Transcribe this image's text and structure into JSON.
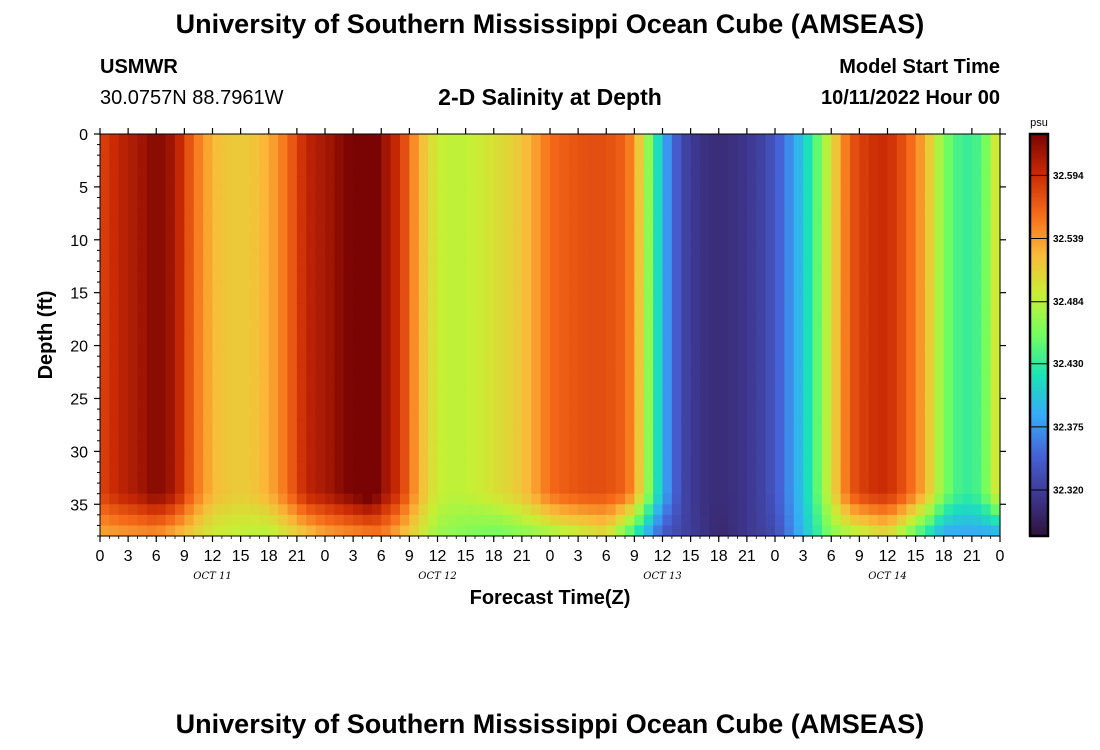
{
  "header": {
    "title": "University of Southern Mississippi Ocean Cube (AMSEAS)",
    "station": "USMWR",
    "coords": "30.0757N  88.7961W",
    "subtitle": "2-D Salinity at Depth",
    "model_start_label": "Model Start Time",
    "model_start_value": "10/11/2022 Hour 00"
  },
  "footer": {
    "title": "University of Southern Mississippi Ocean Cube (AMSEAS)"
  },
  "colors": {
    "scale": [
      "#30123b",
      "#3e378f",
      "#4662d7",
      "#35abf8",
      "#1ae4b6",
      "#72fe5e",
      "#c8ef34",
      "#faba39",
      "#f66b19",
      "#ca2a04",
      "#7a0403"
    ]
  },
  "chart_data": {
    "type": "heatmap",
    "title": "2-D Salinity at Depth",
    "xlabel": "Forecast Time(Z)",
    "ylabel": "Depth (ft)",
    "x_hours_range": [
      0,
      96
    ],
    "y_range": [
      0,
      38
    ],
    "y_ticks": [
      0,
      5,
      10,
      15,
      20,
      25,
      30,
      35
    ],
    "x_tick_labels": [
      "0",
      "3",
      "6",
      "9",
      "12",
      "15",
      "18",
      "21",
      "0",
      "3",
      "6",
      "9",
      "12",
      "15",
      "18",
      "21",
      "0",
      "3",
      "6",
      "9",
      "12",
      "15",
      "18",
      "21",
      "0",
      "3",
      "6",
      "9",
      "12",
      "15",
      "18",
      "21",
      "0"
    ],
    "day_labels": [
      {
        "text": "OCT 11",
        "hour": 12
      },
      {
        "text": "OCT 12",
        "hour": 36
      },
      {
        "text": "OCT 13",
        "hour": 60
      },
      {
        "text": "OCT 14",
        "hour": 84
      }
    ],
    "colorbar": {
      "unit": "psu",
      "range": [
        32.28,
        32.63
      ],
      "ticks": [
        32.594,
        32.539,
        32.484,
        32.43,
        32.375,
        32.32
      ],
      "tick_labels": [
        "32.594",
        "32.539",
        "32.484",
        "32.430",
        "32.375",
        "32.320"
      ]
    },
    "surface_salinity_series": {
      "hours": [
        0,
        2,
        4,
        6,
        8,
        10,
        12,
        14,
        16,
        18,
        20,
        22,
        24,
        26,
        28,
        29,
        30,
        32,
        34,
        36,
        38,
        40,
        42,
        44,
        46,
        48,
        50,
        52,
        54,
        56,
        57,
        58,
        59,
        60,
        62,
        64,
        66,
        68,
        70,
        72,
        74,
        76,
        78,
        80,
        82,
        84,
        86,
        88,
        90,
        92,
        94,
        96
      ],
      "values": [
        32.58,
        32.6,
        32.61,
        32.627,
        32.61,
        32.56,
        32.525,
        32.515,
        32.515,
        32.53,
        32.56,
        32.6,
        32.61,
        32.625,
        32.64,
        32.645,
        32.62,
        32.59,
        32.53,
        32.49,
        32.485,
        32.49,
        32.5,
        32.51,
        32.53,
        32.56,
        32.57,
        32.575,
        32.575,
        32.565,
        32.54,
        32.49,
        32.44,
        32.39,
        32.33,
        32.31,
        32.305,
        32.31,
        32.32,
        32.34,
        32.38,
        32.43,
        32.5,
        32.57,
        32.59,
        32.595,
        32.57,
        32.53,
        32.46,
        32.43,
        32.44,
        32.51
      ]
    },
    "bottom_layer": {
      "start_depth": 34,
      "values_by_hour": {
        "hours": [
          0,
          6,
          12,
          18,
          24,
          30,
          36,
          42,
          48,
          54,
          60,
          66,
          72,
          78,
          84,
          90,
          96
        ],
        "values": [
          32.53,
          32.54,
          32.49,
          32.48,
          32.53,
          32.55,
          32.47,
          32.45,
          32.47,
          32.5,
          32.34,
          32.3,
          32.33,
          32.46,
          32.5,
          32.38,
          32.38
        ]
      }
    }
  }
}
